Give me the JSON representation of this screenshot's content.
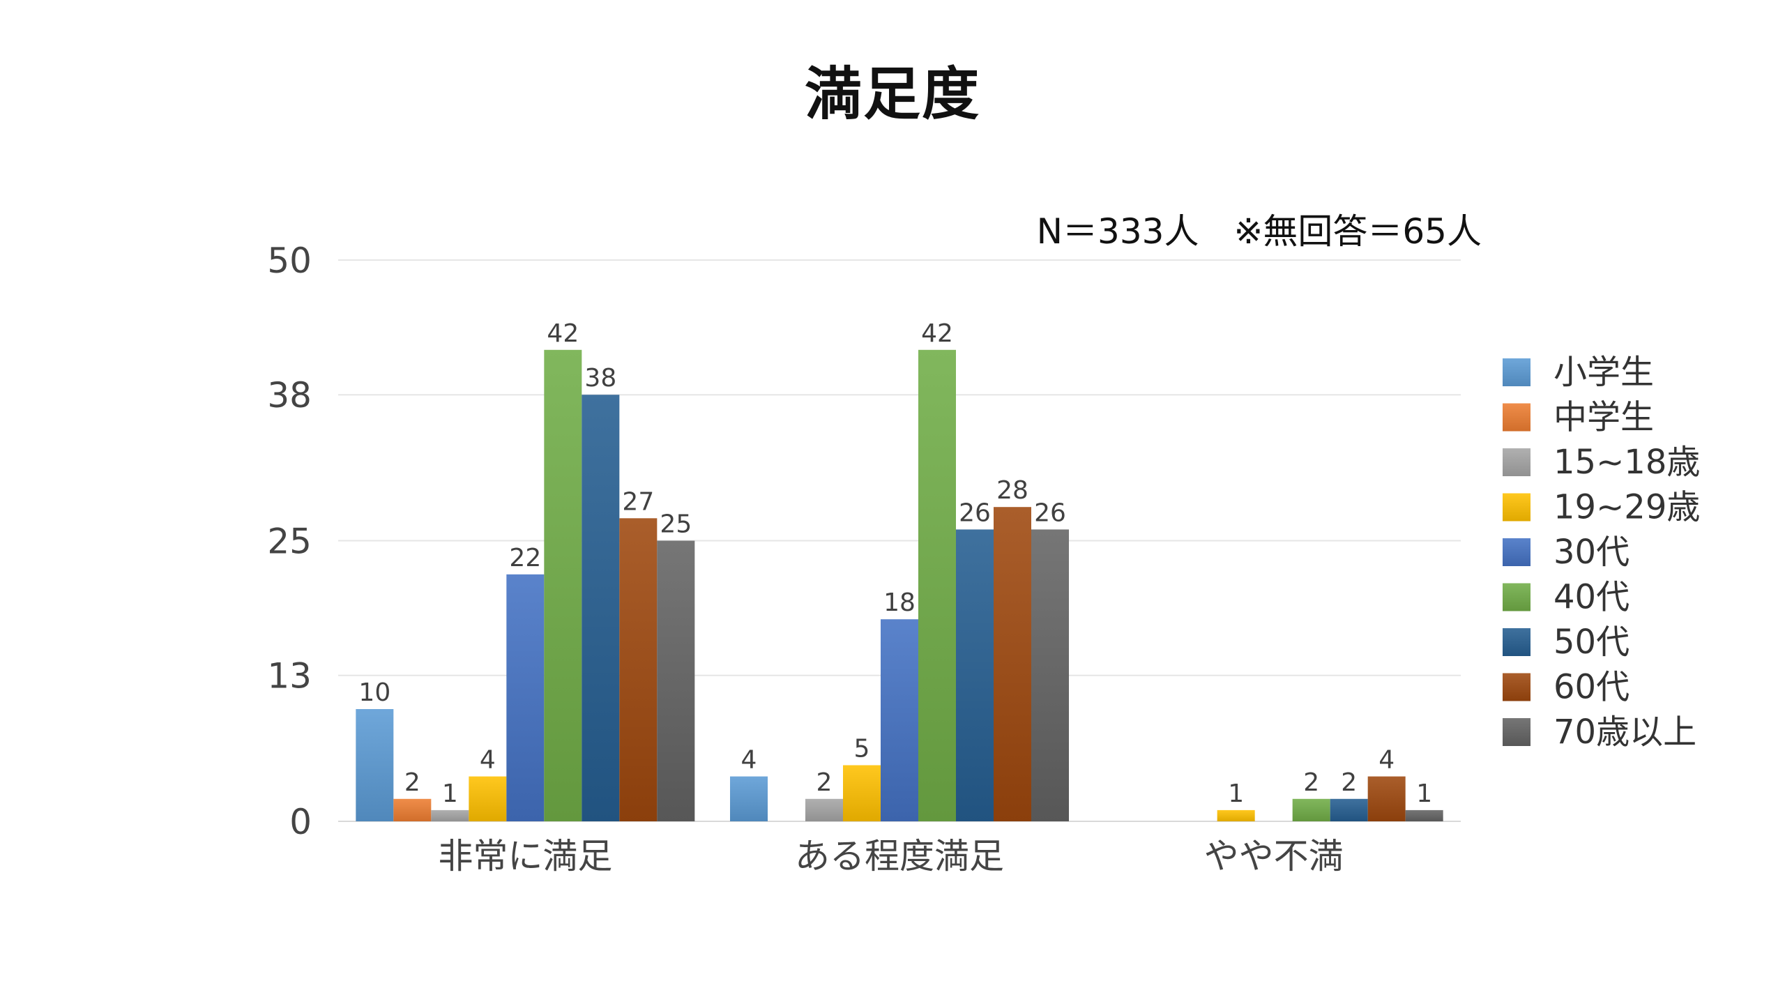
{
  "chart_data": {
    "type": "bar",
    "title": "満足度",
    "note": "N＝333人　※無回答＝65人",
    "categories": [
      "非常に満足",
      "ある程度満足",
      "やや不満"
    ],
    "y_ticks": [
      0,
      13,
      25,
      38,
      50
    ],
    "ylim": [
      0,
      50
    ],
    "grid": true,
    "legend_position": "right",
    "series": [
      {
        "name": "小学生",
        "color": "#5b9bd5",
        "values": [
          10,
          4,
          null
        ]
      },
      {
        "name": "中学生",
        "color": "#ed7d31",
        "values": [
          2,
          null,
          null
        ]
      },
      {
        "name": "15~18歳",
        "color": "#a5a5a5",
        "values": [
          1,
          2,
          null
        ]
      },
      {
        "name": "19~29歳",
        "color": "#ffc000",
        "values": [
          4,
          5,
          1
        ]
      },
      {
        "name": "30代",
        "color": "#4472c4",
        "values": [
          22,
          18,
          null
        ]
      },
      {
        "name": "40代",
        "color": "#70ad47",
        "values": [
          42,
          42,
          2
        ]
      },
      {
        "name": "50代",
        "color": "#255e91",
        "values": [
          38,
          26,
          2
        ]
      },
      {
        "name": "60代",
        "color": "#9e480e",
        "values": [
          27,
          28,
          4
        ]
      },
      {
        "name": "70歳以上",
        "color": "#636363",
        "values": [
          25,
          26,
          1
        ]
      }
    ]
  }
}
